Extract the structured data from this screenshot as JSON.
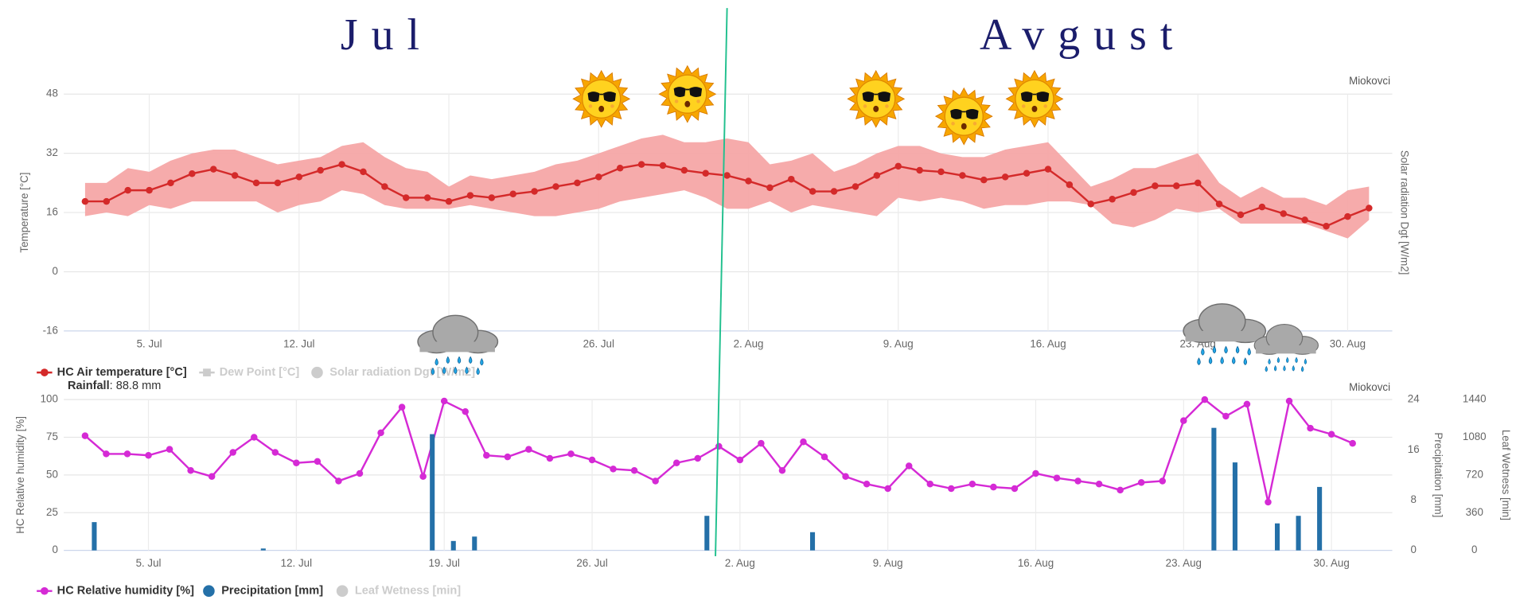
{
  "months": [
    "Jul",
    "Avgust"
  ],
  "chart_data": [
    {
      "type": "line",
      "credit": "Miokovci",
      "ylabel": "Temperature [°C]",
      "y2label": "Solar radiation Dgt [W/m2]",
      "ylim": [
        -16,
        48
      ],
      "yticks": [
        -16,
        0,
        16,
        32,
        48
      ],
      "grid": true,
      "categories": [
        null,
        null,
        null,
        "5. Jul",
        null,
        null,
        null,
        null,
        null,
        null,
        "12. Jul",
        null,
        null,
        null,
        null,
        null,
        null,
        "19. Jul",
        null,
        null,
        null,
        null,
        null,
        null,
        "26. Jul",
        null,
        null,
        null,
        null,
        null,
        null,
        "2. Aug",
        null,
        null,
        null,
        null,
        null,
        null,
        "9. Aug",
        null,
        null,
        null,
        null,
        null,
        null,
        "16. Aug",
        null,
        null,
        null,
        null,
        null,
        null,
        "23. Aug",
        null,
        null,
        null,
        null,
        null,
        null,
        "30. Aug",
        null
      ],
      "range": {
        "color": "#f5a7a7",
        "low": [
          15,
          16,
          15,
          18,
          17,
          19,
          19,
          19,
          19,
          16,
          18,
          19,
          22,
          21,
          18,
          17,
          17,
          17,
          18,
          17,
          16,
          15,
          15,
          16,
          17,
          19,
          20,
          21,
          22,
          20,
          17,
          17,
          19,
          16,
          18,
          17,
          16,
          15,
          20,
          19,
          20,
          19,
          17,
          18,
          18,
          19,
          19,
          18,
          13,
          12,
          14,
          17,
          16,
          17,
          13,
          13,
          13,
          13,
          11,
          9,
          14
        ],
        "high": [
          24,
          24,
          28,
          27,
          30,
          32,
          33,
          33,
          31,
          29,
          30,
          31,
          34,
          35,
          31,
          28,
          27,
          23,
          26,
          25,
          26,
          27,
          29,
          30,
          32,
          34,
          36,
          37,
          35,
          35,
          36,
          35,
          29,
          30,
          32,
          27,
          29,
          32,
          34,
          34,
          32,
          31,
          31,
          33,
          34,
          35,
          29,
          23,
          25,
          28,
          28,
          30,
          32,
          24,
          20,
          23,
          20,
          20,
          18,
          22,
          23
        ]
      },
      "series": [
        {
          "name": "HC Air temperature [°C]",
          "color": "#d42a2a",
          "marker": "circle",
          "values": [
            19,
            19,
            22,
            22,
            24,
            26.5,
            27.7,
            26,
            24,
            24,
            25.6,
            27.4,
            29,
            27,
            23,
            20,
            20,
            19,
            20.6,
            20,
            21,
            21.7,
            23,
            24,
            25.6,
            28,
            29,
            28.7,
            27.4,
            26.6,
            26,
            24.5,
            22.7,
            25,
            21.7,
            21.7,
            23,
            26,
            28.5,
            27.4,
            27,
            26,
            24.8,
            25.6,
            26.6,
            27.7,
            23.5,
            18.3,
            19.6,
            21.4,
            23.2,
            23.2,
            24,
            18.3,
            15.4,
            17.5,
            15.7,
            14,
            12.3,
            14.9,
            17.2
          ]
        },
        {
          "name": "Dew Point [°C]",
          "visible": false,
          "marker": "square"
        },
        {
          "name": "Solar radiation Dgt [W/m2]",
          "visible": false,
          "marker": "circle",
          "axis": "y2"
        }
      ]
    },
    {
      "type": "line",
      "credit": "Miokovci",
      "annotation": {
        "label": "Rainfall",
        "text": ": 88.8 mm"
      },
      "ylabel": "HC Relative humidity [%]",
      "y2label": "Precipitation [mm]",
      "y3label": "Leaf Wetness [min]",
      "ylim": [
        0,
        100
      ],
      "yticks": [
        0,
        25,
        50,
        75,
        100
      ],
      "y2lim": [
        0,
        24
      ],
      "y2ticks": [
        0,
        8,
        16,
        24
      ],
      "y3lim": [
        0,
        1440
      ],
      "y3ticks": [
        0,
        360,
        720,
        1080,
        1440
      ],
      "grid": true,
      "categories": [
        null,
        null,
        null,
        "5. Jul",
        null,
        null,
        null,
        null,
        null,
        null,
        "12. Jul",
        null,
        null,
        null,
        null,
        null,
        null,
        "19. Jul",
        null,
        null,
        null,
        null,
        null,
        null,
        "26. Jul",
        null,
        null,
        null,
        null,
        null,
        null,
        "2. Aug",
        null,
        null,
        null,
        null,
        null,
        null,
        "9. Aug",
        null,
        null,
        null,
        null,
        null,
        null,
        "16. Aug",
        null,
        null,
        null,
        null,
        null,
        null,
        "23. Aug",
        null,
        null,
        null,
        null,
        null,
        null,
        "30. Aug",
        null
      ],
      "series": [
        {
          "name": "HC Relative humidity [%]",
          "color": "#d52ad5",
          "marker": "circle",
          "values": [
            76,
            64,
            64,
            63,
            67,
            53,
            49,
            65,
            75,
            65,
            58,
            59,
            46,
            51,
            78,
            95,
            49,
            99,
            92,
            63,
            62,
            67,
            61,
            64,
            60,
            54,
            53,
            46,
            58,
            61,
            69,
            60,
            71,
            53,
            72,
            62,
            49,
            44,
            41,
            56,
            44,
            41,
            44,
            42,
            41,
            51,
            48,
            46,
            44,
            40,
            45,
            46,
            86,
            100,
            89,
            97,
            32,
            99,
            81,
            77,
            71
          ]
        },
        {
          "name": "Precipitation [mm]",
          "type": "bar",
          "axis": "y2",
          "color": "#2470a8",
          "marker": "circle",
          "values": [
            4.5,
            null,
            null,
            null,
            null,
            null,
            null,
            null,
            0.3,
            null,
            null,
            null,
            null,
            null,
            null,
            null,
            18.5,
            1.5,
            2.2,
            null,
            null,
            null,
            null,
            null,
            null,
            null,
            null,
            null,
            null,
            5.5,
            null,
            null,
            null,
            null,
            2.9,
            null,
            null,
            null,
            null,
            null,
            null,
            null,
            null,
            null,
            null,
            null,
            null,
            null,
            null,
            null,
            null,
            null,
            null,
            19.5,
            14,
            null,
            4.3,
            5.5,
            10.1,
            null,
            null
          ]
        },
        {
          "name": "Leaf Wetness [min]",
          "visible": false,
          "marker": "circle",
          "axis": "y3"
        }
      ]
    }
  ]
}
